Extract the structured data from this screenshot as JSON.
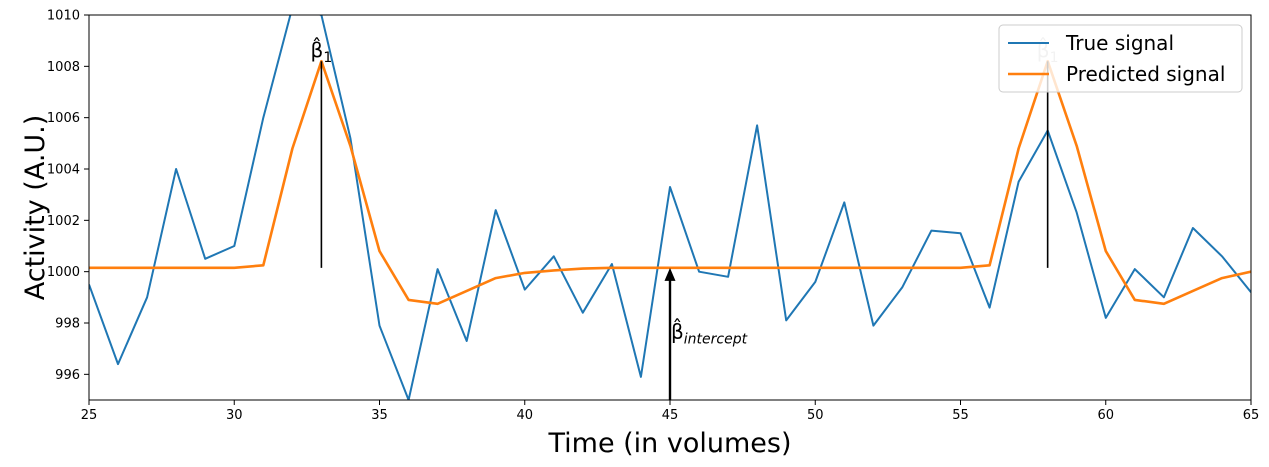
{
  "chart_data": {
    "type": "line",
    "xlabel": "Time (in volumes)",
    "ylabel": "Activity (A.U.)",
    "xlim": [
      25,
      65
    ],
    "ylim": [
      995,
      1010
    ],
    "xticks": [
      25,
      30,
      35,
      40,
      45,
      50,
      55,
      60,
      65
    ],
    "yticks": [
      996,
      998,
      1000,
      1002,
      1004,
      1006,
      1008,
      1010
    ],
    "grid": false,
    "legend_position": "top-right",
    "series": [
      {
        "name": "True signal",
        "color": "#1f77b4",
        "x": [
          25,
          26,
          27,
          28,
          29,
          30,
          31,
          32,
          33,
          34,
          35,
          36,
          37,
          38,
          39,
          40,
          41,
          42,
          43,
          44,
          45,
          46,
          47,
          48,
          49,
          50,
          51,
          52,
          53,
          54,
          55,
          56,
          57,
          58,
          59,
          60,
          61,
          62,
          63,
          64,
          65
        ],
        "y": [
          999.5,
          996.4,
          999.0,
          1004.0,
          1000.5,
          1001.0,
          1006.0,
          1010.3,
          1010.0,
          1005.2,
          997.9,
          995.0,
          1000.1,
          997.3,
          1002.4,
          999.3,
          1000.6,
          998.4,
          1000.3,
          995.9,
          1003.3,
          1000.0,
          999.8,
          1005.7,
          998.1,
          999.6,
          1002.7,
          997.9,
          999.4,
          1001.6,
          1001.5,
          998.6,
          1003.5,
          1005.5,
          1002.3,
          998.2,
          1000.1,
          999.0,
          1001.7,
          1000.6,
          999.2
        ]
      },
      {
        "name": "Predicted signal",
        "color": "#ff7f0e",
        "x": [
          25,
          26,
          27,
          28,
          29,
          30,
          31,
          32,
          33,
          34,
          35,
          36,
          37,
          38,
          39,
          40,
          41,
          42,
          43,
          44,
          45,
          46,
          47,
          48,
          49,
          50,
          51,
          52,
          53,
          54,
          55,
          56,
          57,
          58,
          59,
          60,
          61,
          62,
          63,
          64,
          65
        ],
        "y": [
          1000.15,
          1000.15,
          1000.15,
          1000.15,
          1000.15,
          1000.15,
          1000.25,
          1004.8,
          1008.2,
          1004.9,
          1000.8,
          998.9,
          998.75,
          999.25,
          999.75,
          999.95,
          1000.05,
          1000.12,
          1000.15,
          1000.15,
          1000.15,
          1000.15,
          1000.15,
          1000.15,
          1000.15,
          1000.15,
          1000.15,
          1000.15,
          1000.15,
          1000.15,
          1000.15,
          1000.25,
          1004.8,
          1008.2,
          1004.9,
          1000.8,
          998.9,
          998.75,
          999.25,
          999.75,
          1000.0
        ]
      }
    ],
    "annotations": [
      {
        "type": "line",
        "x": 33,
        "y_start": 1000.15,
        "y_end": 1008.2,
        "label_main": "β̂",
        "label_sub": "1"
      },
      {
        "type": "line",
        "x": 58,
        "y_start": 1000.15,
        "y_end": 1008.2,
        "label_main": "β̂",
        "label_sub": "1"
      },
      {
        "type": "arrow",
        "x": 45,
        "y_start": 995,
        "y_end": 1000.15,
        "label_main": "β̂",
        "label_sub": "intercept"
      }
    ]
  }
}
